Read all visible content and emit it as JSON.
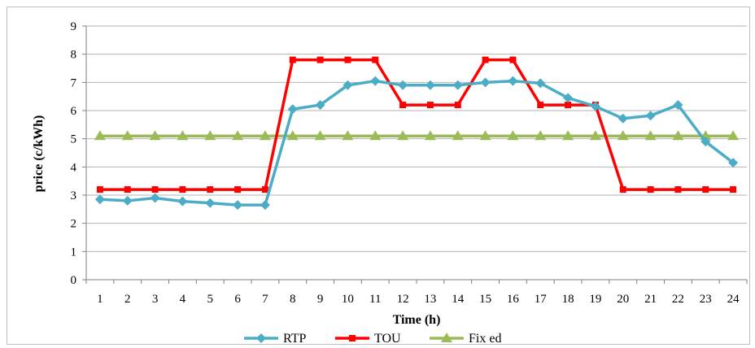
{
  "chart_data": {
    "type": "line",
    "title": "",
    "xlabel": "Time (h)",
    "ylabel": "price (c/kWh)",
    "ylim": [
      0,
      9
    ],
    "yticks": [
      "0",
      "1",
      "2",
      "3",
      "4",
      "5",
      "6",
      "7",
      "8",
      "9"
    ],
    "categories": [
      "1",
      "2",
      "3",
      "4",
      "5",
      "6",
      "7",
      "8",
      "9",
      "10",
      "11",
      "12",
      "13",
      "14",
      "15",
      "16",
      "17",
      "18",
      "19",
      "20",
      "21",
      "22",
      "23",
      "24"
    ],
    "grid": "horizontal",
    "legend_position": "bottom",
    "series": [
      {
        "name": "RTP",
        "color": "#4bacc6",
        "marker": "diamond",
        "values": [
          2.85,
          2.8,
          2.9,
          2.78,
          2.72,
          2.65,
          2.65,
          6.05,
          6.2,
          6.9,
          7.05,
          6.9,
          6.9,
          6.9,
          7.0,
          7.05,
          6.97,
          6.45,
          6.15,
          5.72,
          5.82,
          6.2,
          4.9,
          4.15
        ]
      },
      {
        "name": "TOU",
        "color": "#ff0000",
        "marker": "square",
        "values": [
          3.2,
          3.2,
          3.2,
          3.2,
          3.2,
          3.2,
          3.2,
          7.8,
          7.8,
          7.8,
          7.8,
          6.2,
          6.2,
          6.2,
          7.8,
          7.8,
          6.2,
          6.2,
          6.2,
          3.2,
          3.2,
          3.2,
          3.2,
          3.2
        ]
      },
      {
        "name": "Fix ed",
        "color": "#9bbb59",
        "marker": "triangle",
        "values": [
          5.1,
          5.1,
          5.1,
          5.1,
          5.1,
          5.1,
          5.1,
          5.1,
          5.1,
          5.1,
          5.1,
          5.1,
          5.1,
          5.1,
          5.1,
          5.1,
          5.1,
          5.1,
          5.1,
          5.1,
          5.1,
          5.1,
          5.1,
          5.1
        ]
      }
    ]
  }
}
